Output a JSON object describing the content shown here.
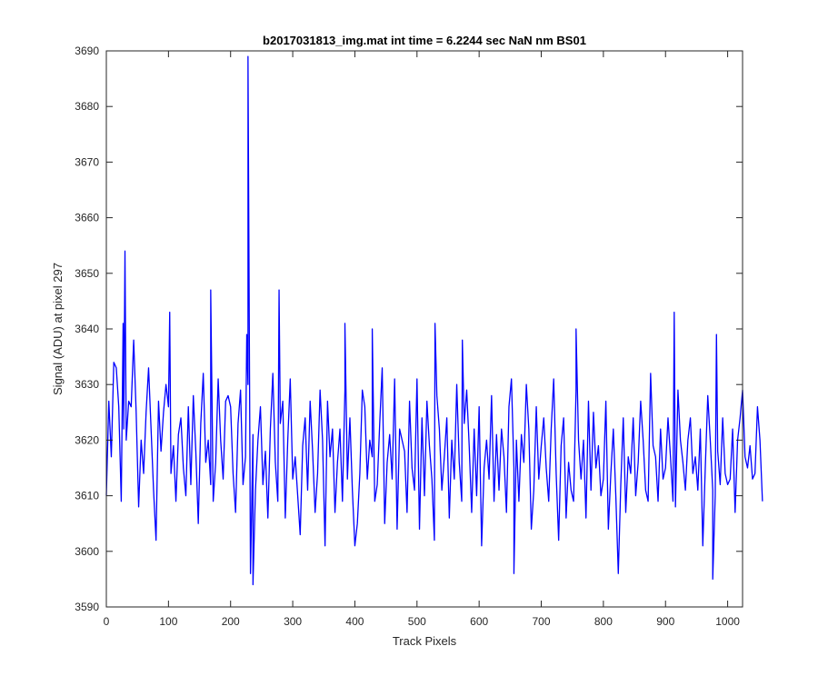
{
  "chart_data": {
    "type": "line",
    "title": "b2017031813_img.mat int time = 6.2244 sec  NaN nm BS01",
    "xlabel": "Track Pixels",
    "ylabel": "Signal (ADU) at pixel 297",
    "xlim": [
      0,
      1024
    ],
    "ylim": [
      3590,
      3690
    ],
    "xticks": [
      0,
      100,
      200,
      300,
      400,
      500,
      600,
      700,
      800,
      900,
      1000
    ],
    "yticks": [
      3590,
      3600,
      3610,
      3620,
      3630,
      3640,
      3650,
      3660,
      3670,
      3680,
      3690
    ],
    "grid": false,
    "line_color": "#0000ff",
    "series": [
      {
        "sample_every": 4,
        "values": [
          3610,
          3627,
          3617,
          3634,
          3633,
          3626,
          3609,
          3622,
          3620,
          3627,
          3626,
          3638,
          3625,
          3608,
          3620,
          3614,
          3625,
          3633,
          3622,
          3611,
          3602,
          3627,
          3618,
          3625,
          3630,
          3626,
          3614,
          3619,
          3609,
          3621,
          3624,
          3615,
          3610,
          3626,
          3612,
          3628,
          3618,
          3605,
          3623,
          3632,
          3616,
          3620,
          3612,
          3609,
          3616,
          3631,
          3620,
          3613,
          3627,
          3628,
          3626,
          3614,
          3607,
          3623,
          3629,
          3612,
          3617,
          3630,
          3596,
          3621,
          3611,
          3620,
          3626,
          3612,
          3618,
          3606,
          3622,
          3632,
          3616,
          3609,
          3623,
          3627,
          3606,
          3620,
          3631,
          3613,
          3617,
          3610,
          3603,
          3619,
          3624,
          3611,
          3627,
          3618,
          3607,
          3614,
          3629,
          3620,
          3601,
          3627,
          3617,
          3622,
          3607,
          3616,
          3622,
          3609,
          3629,
          3613,
          3624,
          3611,
          3601,
          3605,
          3614,
          3629,
          3626,
          3613,
          3620,
          3617,
          3609,
          3612,
          3623,
          3633,
          3605,
          3616,
          3621,
          3613,
          3631,
          3604,
          3622,
          3620,
          3618,
          3607,
          3627,
          3615,
          3611,
          3631,
          3604,
          3624,
          3610,
          3627,
          3619,
          3613,
          3602,
          3628,
          3622,
          3611,
          3617,
          3624,
          3606,
          3620,
          3613,
          3630,
          3616,
          3609,
          3623,
          3629,
          3619,
          3607,
          3622,
          3610,
          3626,
          3601,
          3615,
          3620,
          3613,
          3628,
          3609,
          3621,
          3611,
          3622,
          3617,
          3607,
          3626,
          3631,
          3615,
          3620,
          3609,
          3621,
          3616,
          3630,
          3622,
          3604,
          3611,
          3626,
          3613,
          3619,
          3624,
          3615,
          3609,
          3622,
          3631,
          3614,
          3602,
          3619,
          3624,
          3606,
          3616,
          3611,
          3609,
          3629,
          3620,
          3613,
          3620,
          3606,
          3627,
          3611,
          3625,
          3615,
          3619,
          3610,
          3613,
          3627,
          3604,
          3614,
          3622,
          3610,
          3596,
          3612,
          3624,
          3607,
          3617,
          3614,
          3624,
          3610,
          3616,
          3627,
          3620,
          3611,
          3609,
          3632,
          3619,
          3617,
          3609,
          3622,
          3613,
          3615,
          3624,
          3617,
          3609,
          3608,
          3629,
          3620,
          3616,
          3611,
          3620,
          3624,
          3614,
          3617,
          3611,
          3622,
          3601,
          3615,
          3628,
          3620,
          3611,
          3610,
          3618,
          3612,
          3624,
          3614,
          3612,
          3613,
          3622,
          3607,
          3620,
          3624,
          3629,
          3617,
          3615,
          3619,
          3613,
          3614,
          3626,
          3620,
          3609
        ]
      }
    ],
    "spikes": [
      {
        "x": 27,
        "y": 3641
      },
      {
        "x": 30,
        "y": 3654
      },
      {
        "x": 102,
        "y": 3643
      },
      {
        "x": 168,
        "y": 3647
      },
      {
        "x": 226,
        "y": 3639
      },
      {
        "x": 228,
        "y": 3689
      },
      {
        "x": 236,
        "y": 3594
      },
      {
        "x": 278,
        "y": 3647
      },
      {
        "x": 384,
        "y": 3641
      },
      {
        "x": 428,
        "y": 3640
      },
      {
        "x": 529,
        "y": 3641
      },
      {
        "x": 573,
        "y": 3638
      },
      {
        "x": 656,
        "y": 3596
      },
      {
        "x": 756,
        "y": 3640
      },
      {
        "x": 914,
        "y": 3643
      },
      {
        "x": 976,
        "y": 3595
      },
      {
        "x": 982,
        "y": 3639
      }
    ]
  }
}
